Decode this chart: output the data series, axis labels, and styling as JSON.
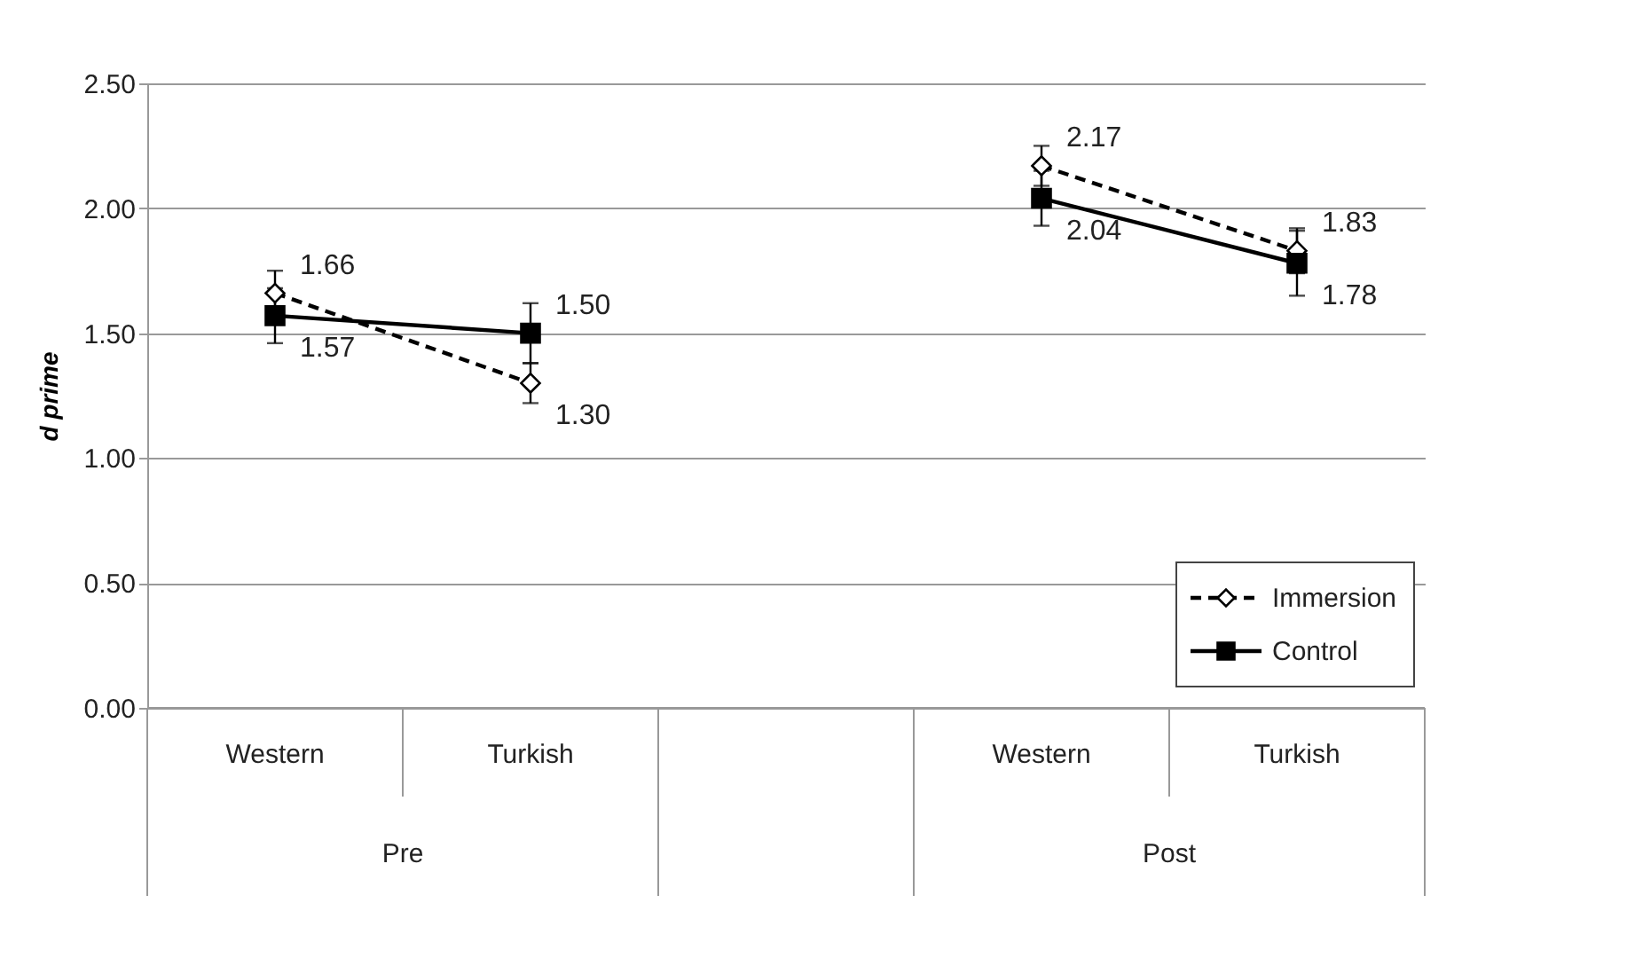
{
  "chart_data": {
    "type": "line",
    "ylabel": "d prime",
    "categories": [
      "Western",
      "Turkish",
      null,
      "Western",
      "Turkish"
    ],
    "annotations": [
      "Pre",
      "Post"
    ],
    "series": [
      {
        "name": "Immersion",
        "color": "#000000",
        "line_style": "dashed",
        "marker": "diamond",
        "values": [
          1.66,
          1.3,
          null,
          2.17,
          1.83
        ],
        "value_labels": [
          "1.66",
          "1.30",
          null,
          "2.17",
          "1.83"
        ],
        "errors": [
          0.09,
          0.08,
          null,
          0.08,
          0.09
        ]
      },
      {
        "name": "Control",
        "color": "#000000",
        "line_style": "solid",
        "marker": "square",
        "values": [
          1.57,
          1.5,
          null,
          2.04,
          1.78
        ],
        "value_labels": [
          "1.57",
          "1.50",
          null,
          "2.04",
          "1.78"
        ],
        "errors": [
          0.11,
          0.12,
          null,
          0.11,
          0.13
        ]
      }
    ],
    "ylim": [
      0,
      2.5
    ],
    "yticks": [
      {
        "value": 0,
        "label": "0.00"
      },
      {
        "value": 0.5,
        "label": "0.50"
      },
      {
        "value": 1.0,
        "label": "1.00"
      },
      {
        "value": 1.5,
        "label": "1.50"
      },
      {
        "value": 2.0,
        "label": "2.00"
      },
      {
        "value": 2.5,
        "label": "2.50"
      }
    ],
    "grid": "y",
    "legend": "bottom right"
  }
}
